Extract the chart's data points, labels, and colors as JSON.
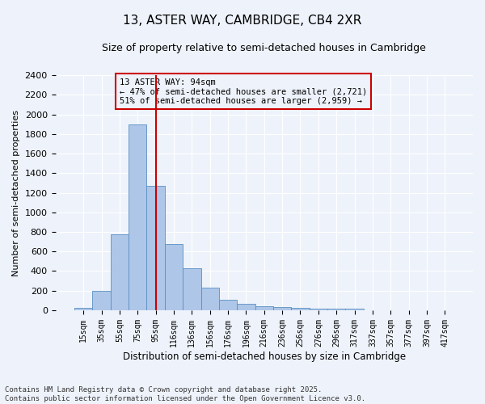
{
  "title": "13, ASTER WAY, CAMBRIDGE, CB4 2XR",
  "subtitle": "Size of property relative to semi-detached houses in Cambridge",
  "xlabel": "Distribution of semi-detached houses by size in Cambridge",
  "ylabel": "Number of semi-detached properties",
  "categories": [
    "15sqm",
    "35sqm",
    "55sqm",
    "75sqm",
    "95sqm",
    "116sqm",
    "136sqm",
    "156sqm",
    "176sqm",
    "196sqm",
    "216sqm",
    "236sqm",
    "256sqm",
    "276sqm",
    "296sqm",
    "317sqm",
    "337sqm",
    "357sqm",
    "377sqm",
    "397sqm",
    "417sqm"
  ],
  "bar_values": [
    25,
    200,
    775,
    1900,
    1270,
    680,
    430,
    230,
    110,
    65,
    45,
    30,
    25,
    20,
    20,
    15,
    0,
    0,
    0,
    0,
    0
  ],
  "bar_color": "#aec6e8",
  "bar_edge_color": "#5a8fc2",
  "vline_color": "#cc0000",
  "annotation_text": "13 ASTER WAY: 94sqm\n← 47% of semi-detached houses are smaller (2,721)\n51% of semi-detached houses are larger (2,959) →",
  "annotation_box_color": "#cc0000",
  "ylim": [
    0,
    2400
  ],
  "yticks": [
    0,
    200,
    400,
    600,
    800,
    1000,
    1200,
    1400,
    1600,
    1800,
    2000,
    2200,
    2400
  ],
  "footer": "Contains HM Land Registry data © Crown copyright and database right 2025.\nContains public sector information licensed under the Open Government Licence v3.0.",
  "bg_color": "#eef3fb",
  "grid_color": "#ffffff"
}
